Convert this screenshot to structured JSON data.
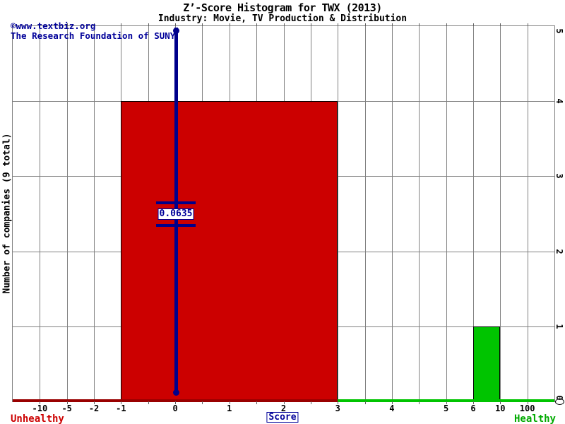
{
  "title": "Z’-Score Histogram for TWX (2013)",
  "subtitle": "Industry: Movie, TV Production & Distribution",
  "watermark": {
    "line1": "©www.textbiz.org",
    "line2": "The Research Foundation of SUNY"
  },
  "chart_data": {
    "type": "bar",
    "title": "Z'-Score Histogram for TWX (2013)",
    "subtitle": "Industry: Movie, TV Production & Distribution",
    "xlabel": "Score",
    "ylabel": "Number of companies (9 total)",
    "ylim": [
      0,
      5
    ],
    "y_ticks": [
      0,
      1,
      2,
      3,
      4,
      5
    ],
    "grid": true,
    "x_axis_note": "nonlinear axis made of 20 equal segments",
    "x_axis": {
      "total_segments": 20,
      "ticks": [
        {
          "label": "-10",
          "seg": 1
        },
        {
          "label": "-5",
          "seg": 2
        },
        {
          "label": "-2",
          "seg": 3
        },
        {
          "label": "-1",
          "seg": 4
        },
        {
          "label": "0",
          "seg": 6
        },
        {
          "label": "1",
          "seg": 8
        },
        {
          "label": "2",
          "seg": 10
        },
        {
          "label": "3",
          "seg": 12
        },
        {
          "label": "4",
          "seg": 14
        },
        {
          "label": "5",
          "seg": 16
        },
        {
          "label": "6",
          "seg": 17
        },
        {
          "label": "10",
          "seg": 18
        },
        {
          "label": "100",
          "seg": 19
        }
      ]
    },
    "bars": [
      {
        "score_range": "-1 to 3",
        "count": 4,
        "from_seg": 4,
        "to_seg": 12,
        "color": "#cc0000"
      },
      {
        "score_range": "6 to 10",
        "count": 1,
        "from_seg": 17,
        "to_seg": 18,
        "color": "#00c400"
      }
    ],
    "baseline_segments": [
      {
        "from_seg": 0,
        "to_seg": 12,
        "color": "#990000"
      },
      {
        "from_seg": 12,
        "to_seg": 20,
        "color": "#00c400"
      }
    ],
    "marker": {
      "value": 0.0635,
      "label": "0.0635",
      "seg": 6.03,
      "color": "#00008b"
    },
    "legend": {
      "left": "Unhealthy",
      "right": "Healthy"
    },
    "colors": {
      "unhealthy_bar": "#cc0000",
      "healthy_bar": "#00c400",
      "marker": "#00008b",
      "grid": "#808080",
      "unhealthy_text": "#cc0000",
      "healthy_text": "#00aa00",
      "watermark_text": "#000099"
    }
  }
}
